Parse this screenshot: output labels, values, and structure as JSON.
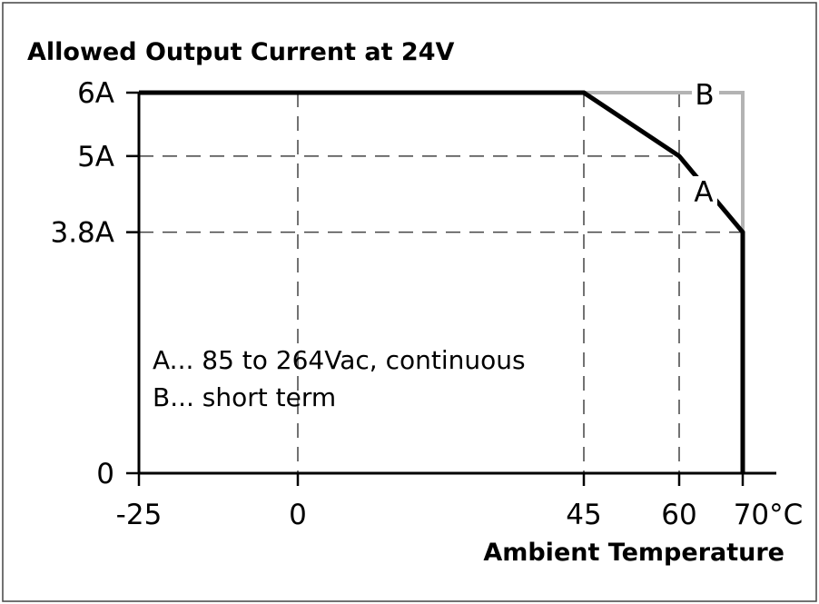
{
  "chart_data": {
    "type": "line",
    "title": "Allowed Output Current at 24V",
    "xlabel": "Ambient Temperature",
    "ylabel": "",
    "xlim": [
      -25,
      73
    ],
    "ylim": [
      0,
      6
    ],
    "x_ticks": [
      {
        "value": -25,
        "label": "-25"
      },
      {
        "value": 0,
        "label": "0"
      },
      {
        "value": 45,
        "label": "45"
      },
      {
        "value": 60,
        "label": "60"
      },
      {
        "value": 70,
        "label": "70°C"
      }
    ],
    "y_ticks": [
      {
        "value": 0,
        "label": "0"
      },
      {
        "value": 3.8,
        "label": "3.8A"
      },
      {
        "value": 5,
        "label": "5A"
      },
      {
        "value": 6,
        "label": "6A"
      }
    ],
    "grid": "dashed at x=0,45,60 and y=3.8,5",
    "series": [
      {
        "name": "A",
        "color": "#000000",
        "points": [
          [
            -25,
            6
          ],
          [
            45,
            6
          ],
          [
            60,
            5
          ],
          [
            70,
            3.8
          ],
          [
            70,
            0
          ]
        ]
      },
      {
        "name": "B",
        "color": "#b3b3b3",
        "points": [
          [
            45,
            6
          ],
          [
            70,
            6
          ],
          [
            70,
            3.8
          ]
        ]
      }
    ],
    "legend": [
      "A... 85 to 264Vac, continuous",
      "B... short term"
    ]
  }
}
